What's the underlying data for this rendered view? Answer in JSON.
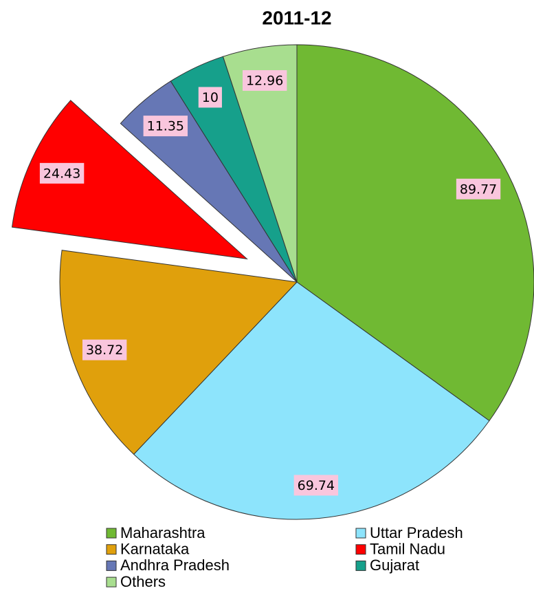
{
  "chart_data": {
    "type": "pie",
    "title": "2011-12",
    "categories": [
      "Maharashtra",
      "Uttar Pradesh",
      "Karnataka",
      "Tamil Nadu",
      "Andhra Pradesh",
      "Gujarat",
      "Others"
    ],
    "values": [
      89.77,
      69.74,
      38.72,
      24.43,
      11.35,
      10,
      12.96
    ],
    "colors": [
      "#70b933",
      "#8de4fc",
      "#e0a00c",
      "#ff0000",
      "#6677b5",
      "#16a08b",
      "#a8de8f"
    ],
    "legend": "bottom"
  }
}
